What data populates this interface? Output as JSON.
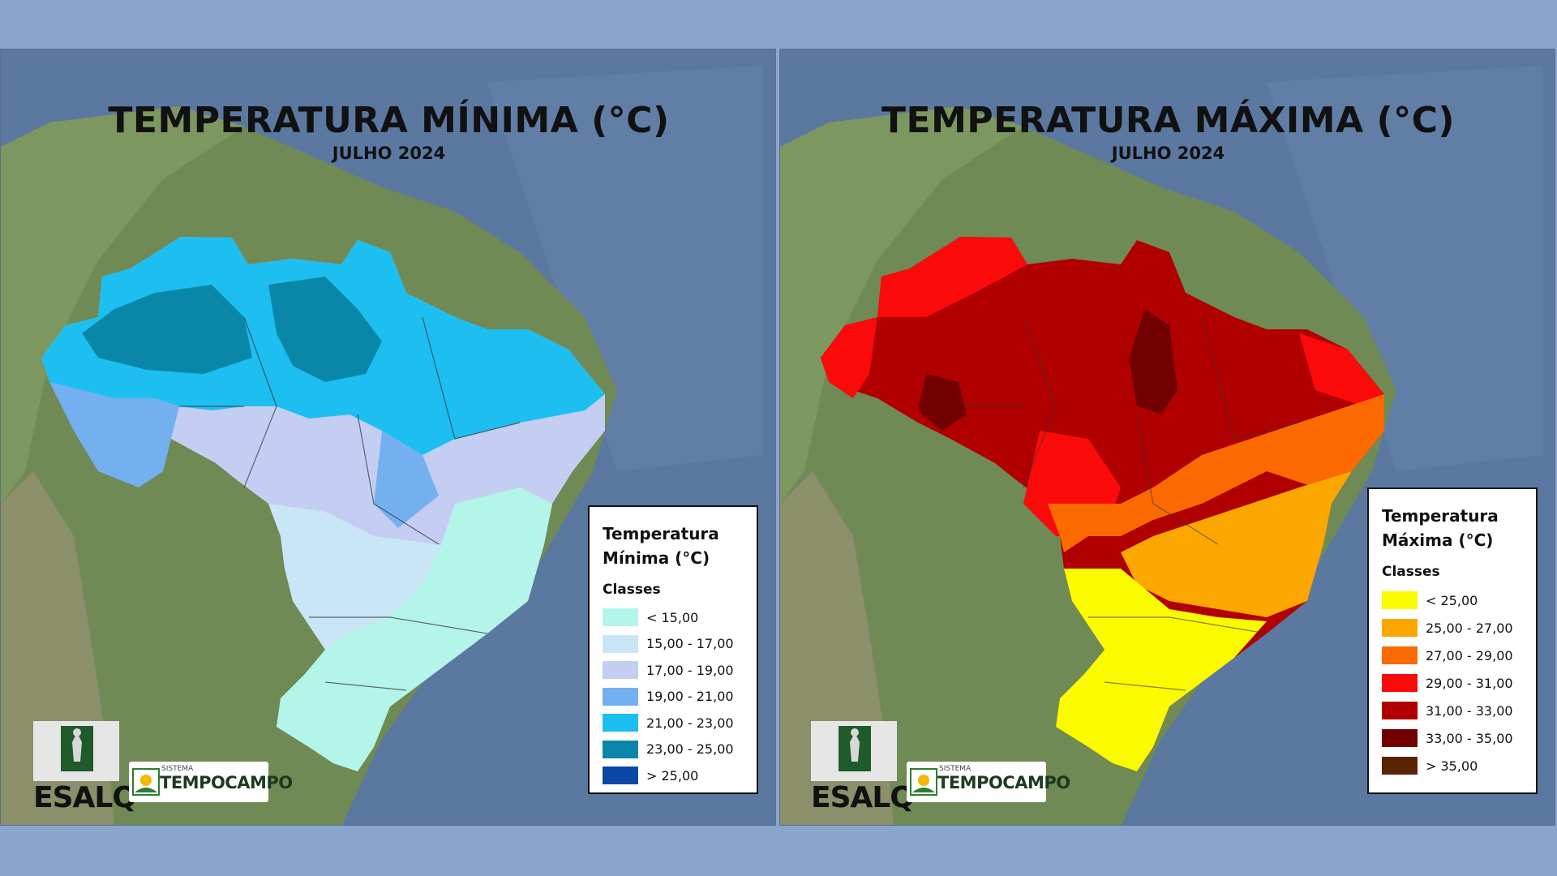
{
  "panels": [
    {
      "title": "TEMPERATURA MÍNIMA (°C)",
      "subtitle": "JULHO 2024",
      "legend": {
        "title_line1": "Temperatura",
        "title_line2": "Mínima (°C)",
        "classes_label": "Classes",
        "items": [
          {
            "label": "< 15,00",
            "color": "#b4f5e9"
          },
          {
            "label": "15,00 - 17,00",
            "color": "#c8e6f5"
          },
          {
            "label": "17,00 - 19,00",
            "color": "#c4cef3"
          },
          {
            "label": "19,00 - 21,00",
            "color": "#74b0f0"
          },
          {
            "label": "21,00 - 23,00",
            "color": "#1cbff0"
          },
          {
            "label": "23,00 - 25,00",
            "color": "#0a87a8"
          },
          {
            "label": "> 25,00",
            "color": "#0b48a6"
          }
        ]
      }
    },
    {
      "title": "TEMPERATURA MÁXIMA (°C)",
      "subtitle": "JULHO 2024",
      "legend": {
        "title_line1": "Temperatura",
        "title_line2": "Máxima (°C)",
        "classes_label": "Classes",
        "items": [
          {
            "label": "< 25,00",
            "color": "#fafa00"
          },
          {
            "label": "25,00 - 27,00",
            "color": "#fba700"
          },
          {
            "label": "27,00 - 29,00",
            "color": "#fb6a00"
          },
          {
            "label": "29,00 - 31,00",
            "color": "#fb0a0a"
          },
          {
            "label": "31,00 - 33,00",
            "color": "#b00000"
          },
          {
            "label": "33,00 - 35,00",
            "color": "#730000"
          },
          {
            "label": "> 35,00",
            "color": "#5a2304"
          }
        ]
      }
    }
  ],
  "logos": {
    "esalq": "ESALQ",
    "tempocampo_small": "SISTEMA",
    "tempocampo_main": "TEMPOCAMPO"
  },
  "icons": [
    "esalq-shield-icon",
    "tempocampo-logo-icon"
  ]
}
